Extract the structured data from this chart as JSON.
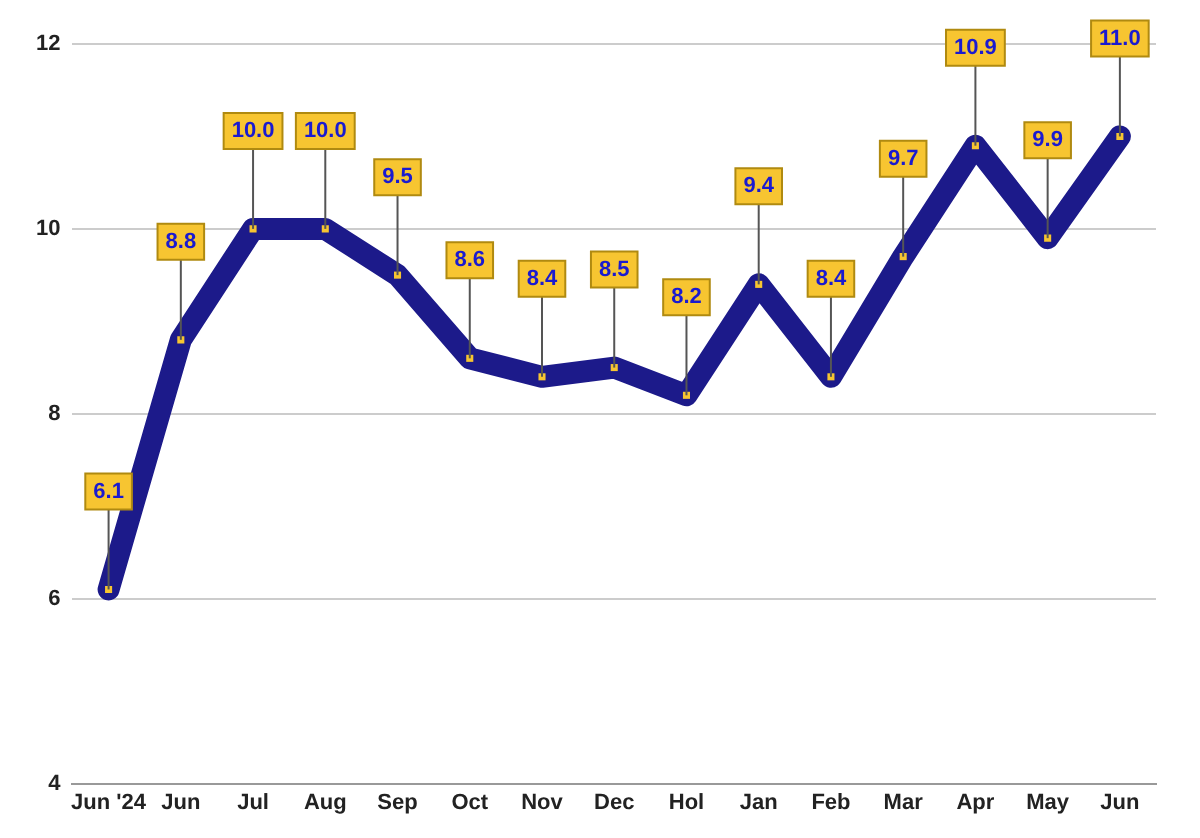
{
  "chart_data": {
    "type": "line",
    "categories": [
      "Jun '24",
      "Jun",
      "Jul",
      "Aug",
      "Sep",
      "Oct",
      "Nov",
      "Dec",
      "Hol",
      "Jan",
      "Feb",
      "Mar",
      "Apr",
      "May",
      "Jun"
    ],
    "series": [
      {
        "color": "#1c1a8a",
        "values": [
          6.1,
          8.8,
          10.0,
          10.0,
          9.5,
          8.6,
          8.4,
          8.5,
          8.2,
          9.4,
          8.4,
          9.7,
          10.9,
          9.9,
          11.0
        ],
        "value_labels": [
          "6.1",
          "8.8",
          "10.0",
          "10.0",
          "9.5",
          "8.6",
          "8.4",
          "8.5",
          "8.2",
          "9.4",
          "8.4",
          "9.7",
          "10.9",
          "9.9",
          "11.0"
        ]
      }
    ],
    "ylim": [
      4,
      12
    ],
    "yticks": [
      4,
      6,
      8,
      10,
      12
    ],
    "grid": "y",
    "marker": "square",
    "line_style": "solid",
    "legend": false
  }
}
